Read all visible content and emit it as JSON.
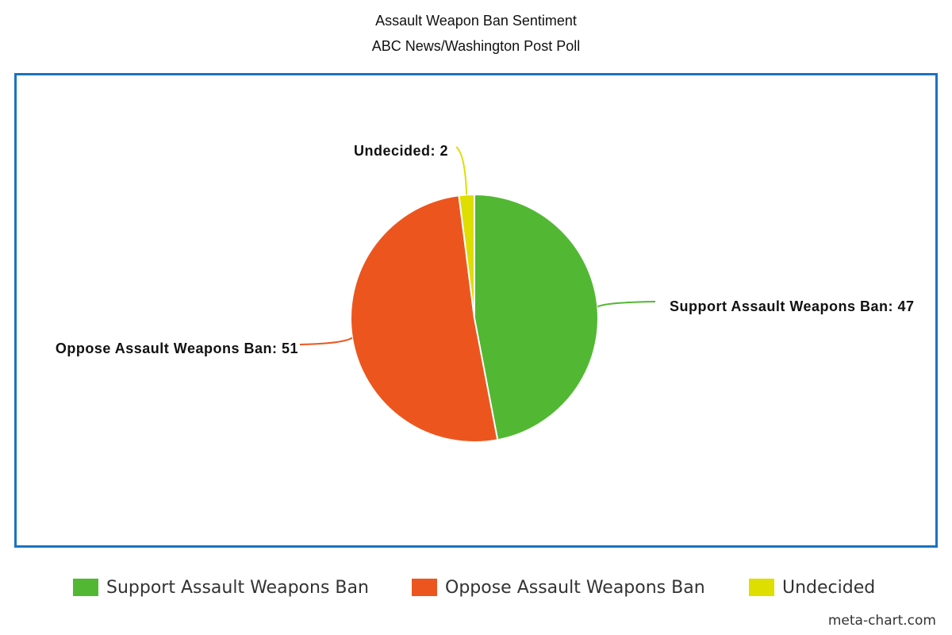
{
  "chart_data": {
    "type": "pie",
    "title": "Assault Weapon Ban Sentiment",
    "subtitle": "ABC News/Washington Post Poll",
    "slices": [
      {
        "label": "Support Assault Weapons Ban",
        "value": 47,
        "color": "#52b833",
        "data_label": "Support Assault Weapons Ban: 47"
      },
      {
        "label": "Oppose Assault Weapons Ban",
        "value": 51,
        "color": "#ec561e",
        "data_label": "Oppose Assault Weapons Ban: 51"
      },
      {
        "label": "Undecided",
        "value": 2,
        "color": "#dede00",
        "data_label": "Undecided: 2"
      }
    ],
    "legend_position": "bottom"
  },
  "frame_color": "#1a73c2",
  "credit": "meta-chart.com"
}
